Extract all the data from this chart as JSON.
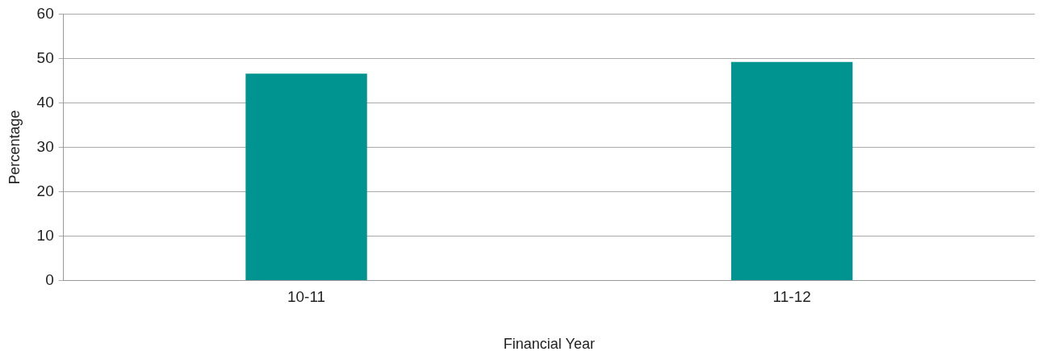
{
  "chart_data": {
    "type": "bar",
    "xlabel": "Financial Year",
    "ylabel": "Percentage",
    "categories": [
      "10-11",
      "11-12"
    ],
    "values": [
      46.6,
      49.2
    ],
    "color": "#009490",
    "ylim": [
      0,
      60
    ],
    "yticks": [
      0,
      10,
      20,
      30,
      40,
      50,
      60
    ],
    "grid": "y"
  }
}
